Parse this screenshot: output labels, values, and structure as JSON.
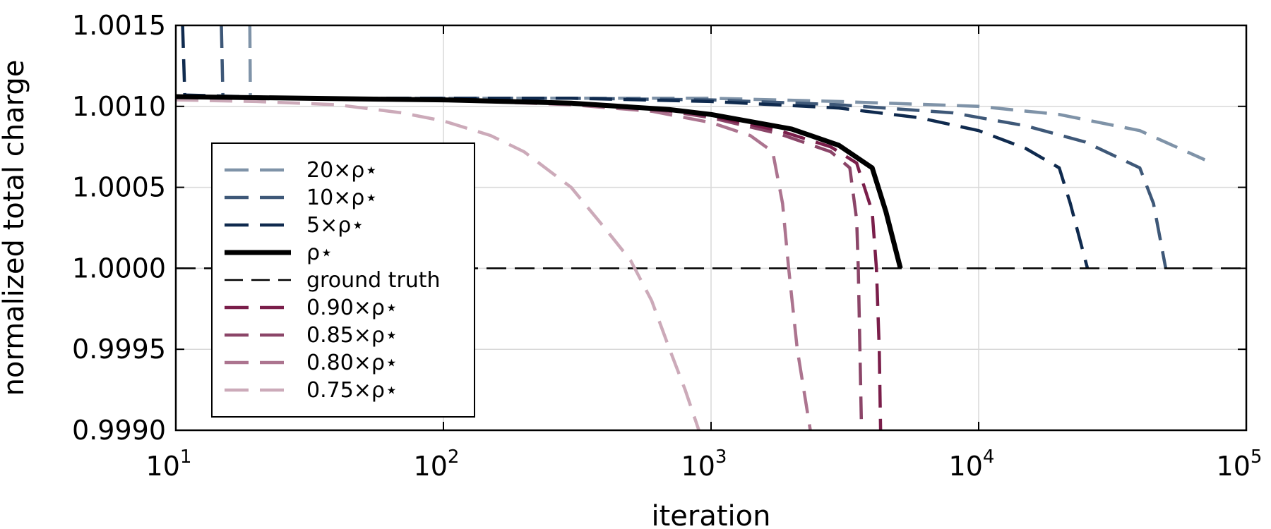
{
  "chart_data": {
    "type": "line",
    "title": "",
    "xlabel": "iteration",
    "ylabel": "normalized total charge",
    "x_scale": "log",
    "xlim": [
      10,
      100000
    ],
    "ylim": [
      0.999,
      1.0015
    ],
    "grid": true,
    "legend_placement": "center-left",
    "x_ticks": [
      {
        "value": 10,
        "base": "10",
        "exp": "1"
      },
      {
        "value": 100,
        "base": "10",
        "exp": "2"
      },
      {
        "value": 1000,
        "base": "10",
        "exp": "3"
      },
      {
        "value": 10000,
        "base": "10",
        "exp": "4"
      },
      {
        "value": 100000,
        "base": "10",
        "exp": "5"
      }
    ],
    "y_ticks": [
      {
        "value": 1.0015,
        "label": "1.0015"
      },
      {
        "value": 1.001,
        "label": "1.0010"
      },
      {
        "value": 1.0005,
        "label": "1.0005"
      },
      {
        "value": 1.0,
        "label": "1.0000"
      },
      {
        "value": 0.9995,
        "label": "0.9995"
      },
      {
        "value": 0.999,
        "label": "0.9990"
      }
    ],
    "series": [
      {
        "name": "20×ρ⋆",
        "color": "#7f93a8",
        "dash": "dashed",
        "width": 4.5,
        "points": [
          [
            18.9,
            1.0015
          ],
          [
            19,
            1.00105
          ],
          [
            30,
            1.00105
          ],
          [
            100,
            1.00105
          ],
          [
            300,
            1.00105
          ],
          [
            1000,
            1.00105
          ],
          [
            3000,
            1.00103
          ],
          [
            10000,
            1.001
          ],
          [
            20000,
            1.00095
          ],
          [
            40000,
            1.00085
          ],
          [
            70000,
            1.00067
          ]
        ]
      },
      {
        "name": "10×ρ⋆",
        "color": "#3e5878",
        "dash": "dashed",
        "width": 4.5,
        "points": [
          [
            14.8,
            1.0015
          ],
          [
            15,
            1.00106
          ],
          [
            30,
            1.00105
          ],
          [
            100,
            1.00105
          ],
          [
            300,
            1.00105
          ],
          [
            1000,
            1.00104
          ],
          [
            3000,
            1.00101
          ],
          [
            8000,
            1.00096
          ],
          [
            15000,
            1.00088
          ],
          [
            25000,
            1.00078
          ],
          [
            40000,
            1.00062
          ],
          [
            45000,
            1.0004
          ],
          [
            50000,
            1.0
          ]
        ]
      },
      {
        "name": "5×ρ⋆",
        "color": "#0f2a4e",
        "dash": "dashed",
        "width": 4.5,
        "points": [
          [
            10.6,
            1.0015
          ],
          [
            10.8,
            1.00107
          ],
          [
            30,
            1.00105
          ],
          [
            100,
            1.00105
          ],
          [
            300,
            1.00105
          ],
          [
            1000,
            1.00103
          ],
          [
            3000,
            1.00099
          ],
          [
            6000,
            1.00093
          ],
          [
            10000,
            1.00085
          ],
          [
            15000,
            1.00074
          ],
          [
            20000,
            1.00062
          ],
          [
            22000,
            1.0004
          ],
          [
            25500,
            1.0
          ]
        ]
      },
      {
        "name": "ρ⋆",
        "color": "#000000",
        "dash": "solid",
        "width": 7,
        "points": [
          [
            10,
            1.00106
          ],
          [
            30,
            1.00105
          ],
          [
            100,
            1.00104
          ],
          [
            300,
            1.00102
          ],
          [
            700,
            1.00098
          ],
          [
            1000,
            1.00095
          ],
          [
            2000,
            1.00086
          ],
          [
            3000,
            1.00076
          ],
          [
            4000,
            1.00062
          ],
          [
            4500,
            1.00035
          ],
          [
            5100,
            1.0
          ]
        ]
      },
      {
        "name": "ground truth",
        "color": "#000000",
        "dash": "longdash",
        "width": 2.5,
        "points": [
          [
            10,
            1.0
          ],
          [
            100000,
            1.0
          ]
        ]
      },
      {
        "name": "0.90×ρ⋆",
        "color": "#7a1e4a",
        "dash": "dashed",
        "width": 4.5,
        "points": [
          [
            10,
            1.00106
          ],
          [
            30,
            1.00105
          ],
          [
            100,
            1.00104
          ],
          [
            300,
            1.00102
          ],
          [
            700,
            1.00098
          ],
          [
            1000,
            1.00094
          ],
          [
            1800,
            1.00085
          ],
          [
            2800,
            1.00075
          ],
          [
            3500,
            1.00065
          ],
          [
            4000,
            1.00035
          ],
          [
            4150,
            1.0
          ],
          [
            4250,
            0.9995
          ],
          [
            4300,
            0.999
          ]
        ]
      },
      {
        "name": "0.85×ρ⋆",
        "color": "#8b4568",
        "dash": "dashed",
        "width": 4.5,
        "points": [
          [
            10,
            1.00106
          ],
          [
            30,
            1.00105
          ],
          [
            100,
            1.00104
          ],
          [
            300,
            1.00102
          ],
          [
            700,
            1.00097
          ],
          [
            1000,
            1.00093
          ],
          [
            1800,
            1.00083
          ],
          [
            2800,
            1.00072
          ],
          [
            3300,
            1.00062
          ],
          [
            3500,
            1.0003
          ],
          [
            3550,
            1.0
          ],
          [
            3600,
            0.9995
          ],
          [
            3650,
            0.999
          ]
        ]
      },
      {
        "name": "0.80×ρ⋆",
        "color": "#ac748f",
        "dash": "dashed",
        "width": 4.5,
        "points": [
          [
            10,
            1.00106
          ],
          [
            30,
            1.00105
          ],
          [
            100,
            1.00104
          ],
          [
            300,
            1.00101
          ],
          [
            600,
            1.00097
          ],
          [
            1000,
            1.0009
          ],
          [
            1400,
            1.00082
          ],
          [
            1700,
            1.00072
          ],
          [
            1850,
            1.0004
          ],
          [
            1950,
            1.0
          ],
          [
            2100,
            0.9995
          ],
          [
            2350,
            0.999
          ]
        ]
      },
      {
        "name": "0.75×ρ⋆",
        "color": "#ccaab9",
        "dash": "dashed",
        "width": 4.5,
        "points": [
          [
            10,
            1.00104
          ],
          [
            20,
            1.00103
          ],
          [
            40,
            1.00101
          ],
          [
            70,
            1.00096
          ],
          [
            100,
            1.00091
          ],
          [
            150,
            1.00082
          ],
          [
            200,
            1.00072
          ],
          [
            300,
            1.0005
          ],
          [
            400,
            1.00025
          ],
          [
            500,
            1.00005
          ],
          [
            600,
            0.9998
          ],
          [
            700,
            0.9995
          ],
          [
            800,
            0.99925
          ],
          [
            900,
            0.999
          ]
        ]
      }
    ]
  }
}
